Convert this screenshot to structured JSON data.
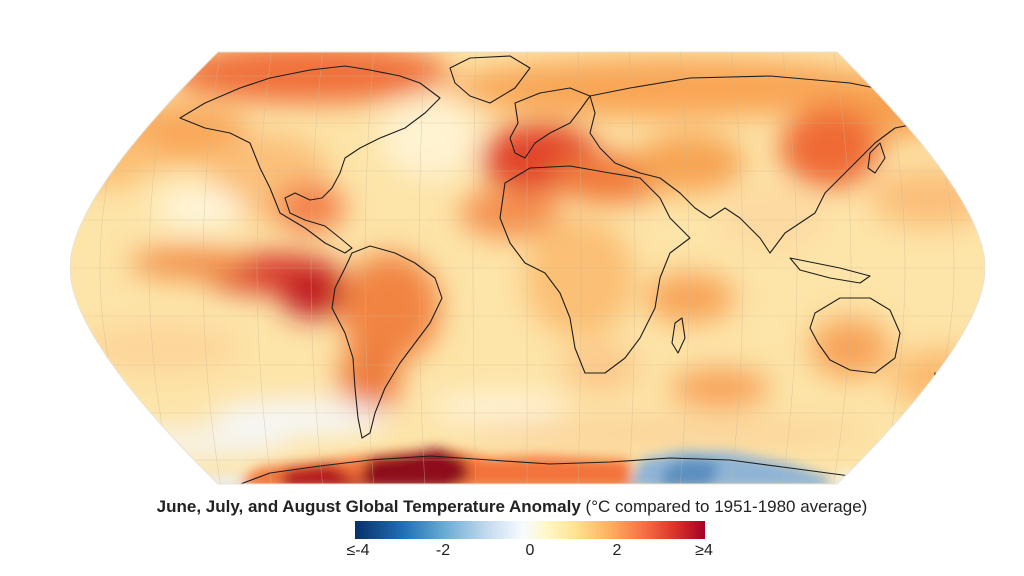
{
  "caption": {
    "title": "June, July, and August Global Temperature Anomaly",
    "subtitle": "(°C compared to 1951-1980 average)"
  },
  "legend": {
    "ticks": [
      "≤-4",
      "-2",
      "0",
      "2",
      "≥4"
    ],
    "colors": {
      "cold_extreme": "#08306b",
      "cold": "#6baed6",
      "neutral": "#f7fbff",
      "warm": "#fdae61",
      "hot": "#d73027",
      "hot_extreme": "#a50026"
    }
  },
  "map": {
    "projection": "robinson",
    "value_range": [
      -4,
      4
    ],
    "gridlines": true,
    "coastlines": true
  }
}
